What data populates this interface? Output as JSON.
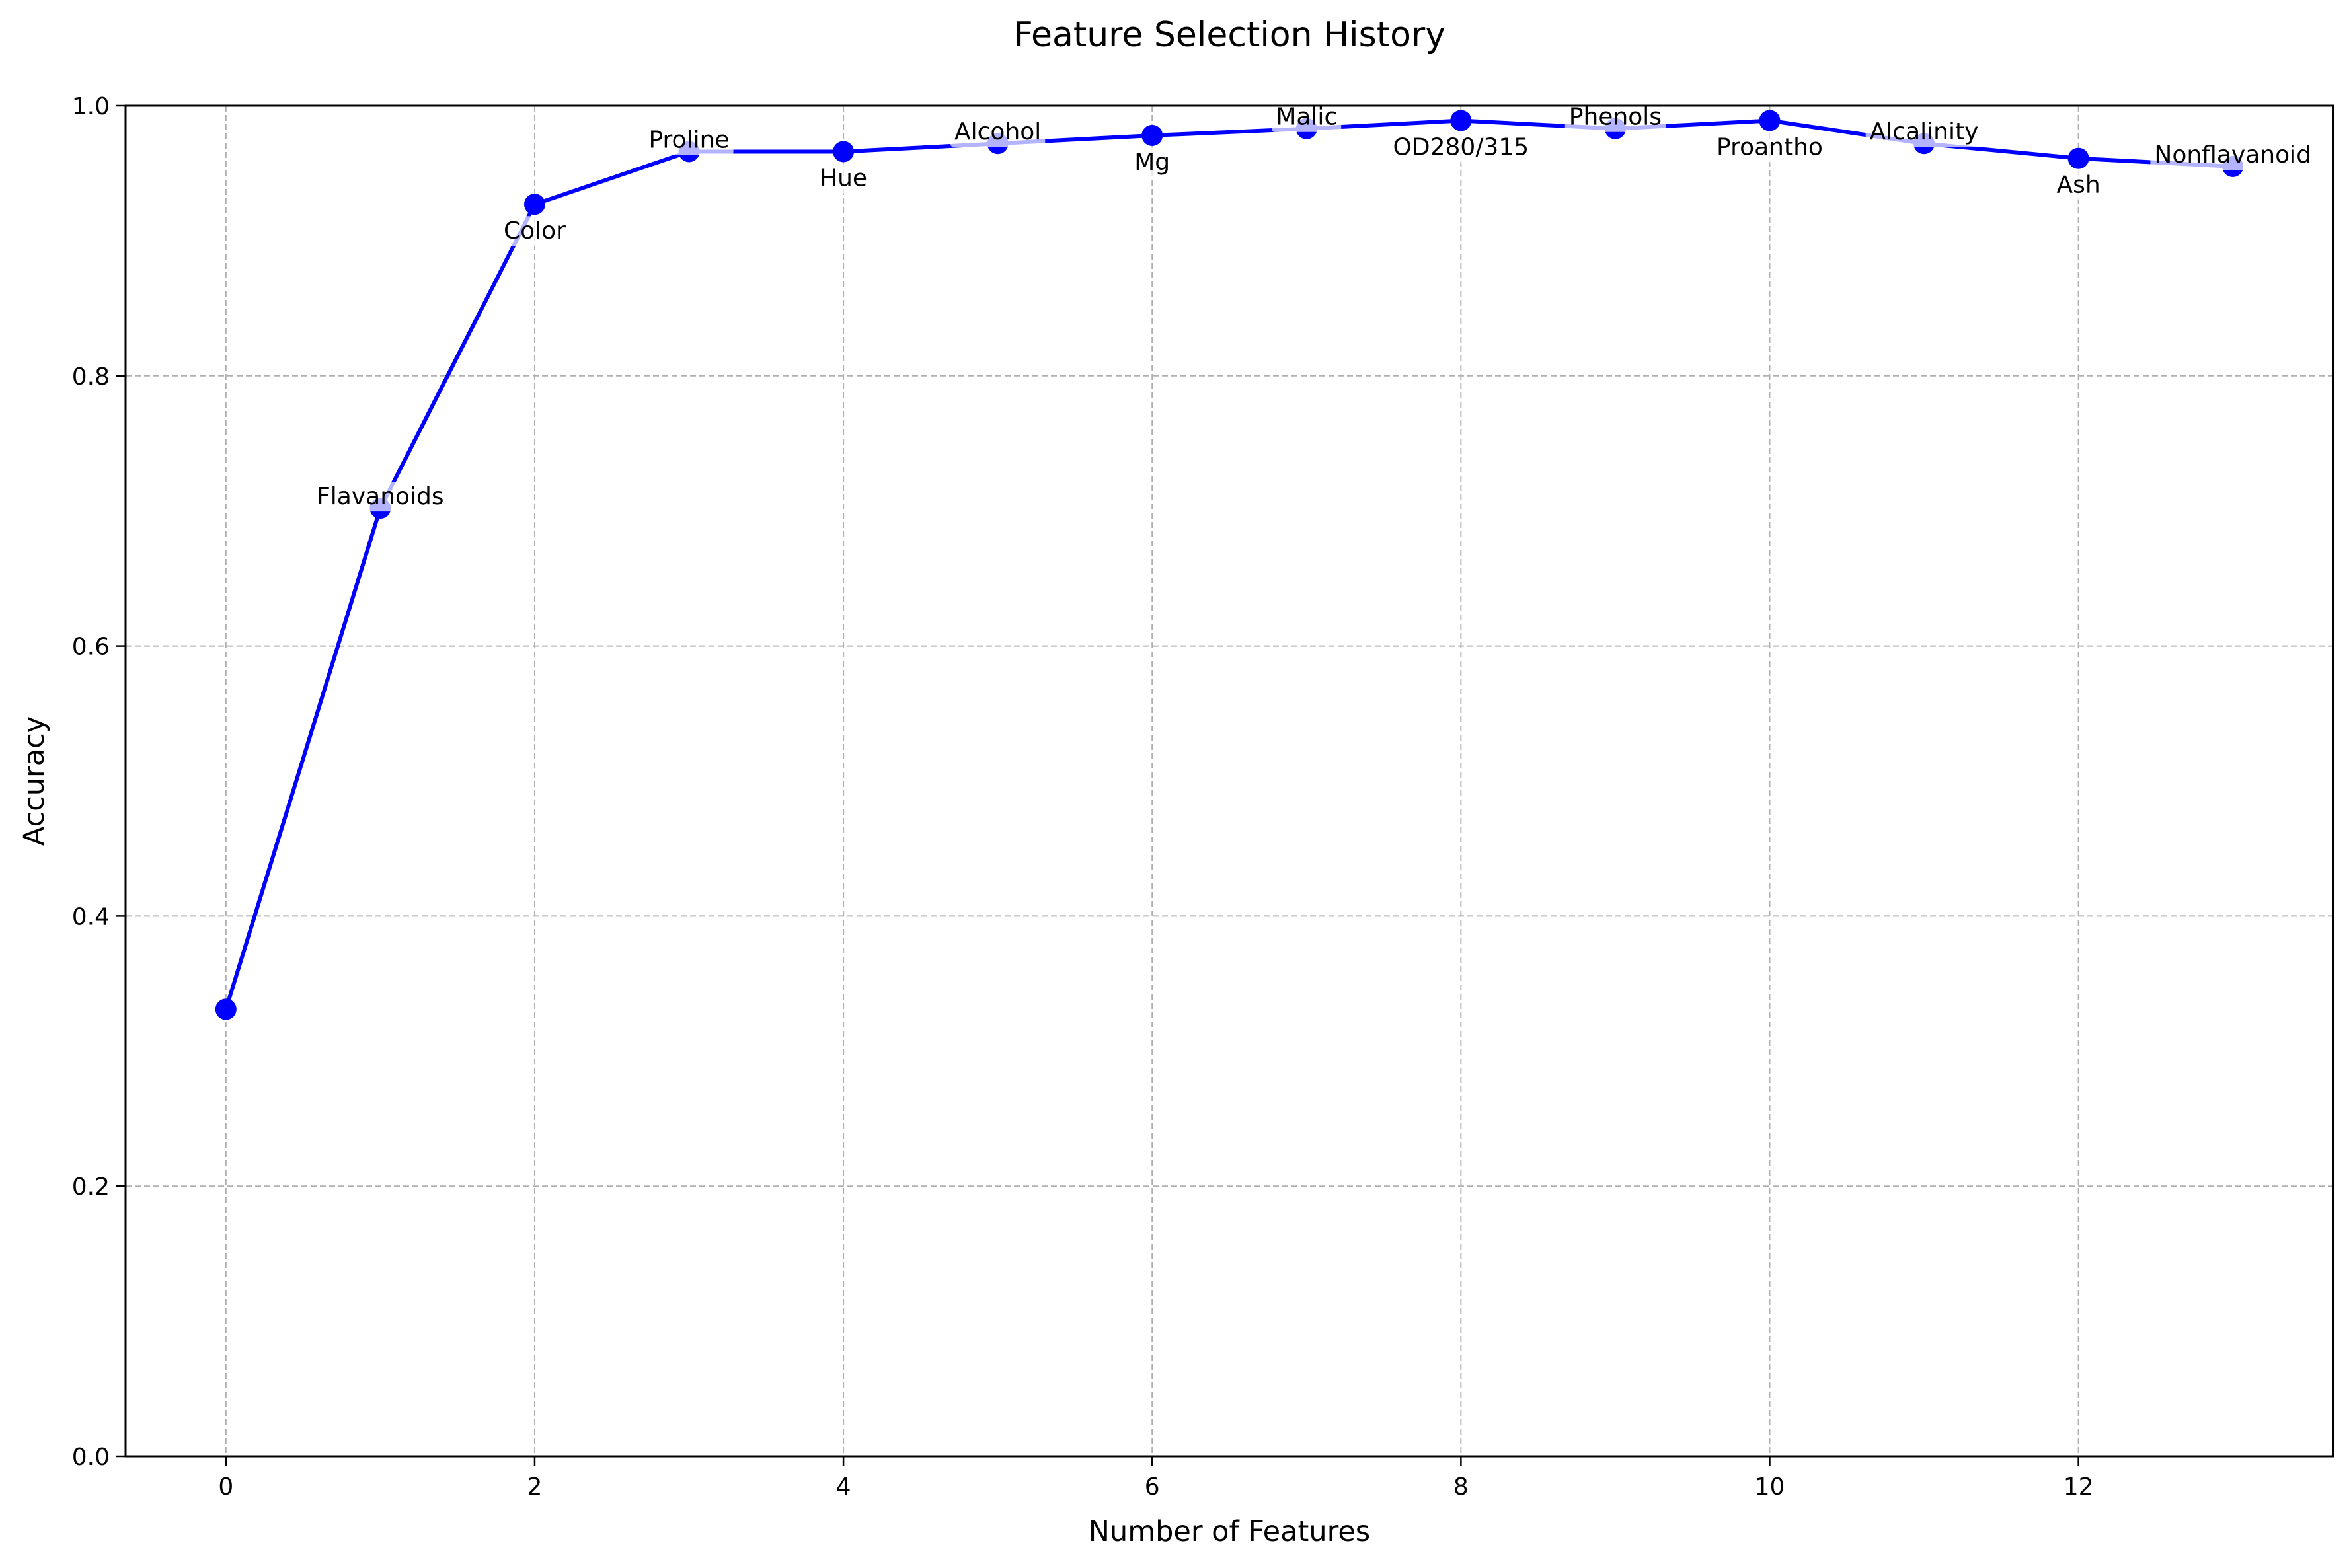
{
  "chart_data": {
    "type": "line",
    "title": "Feature Selection History",
    "xlabel": "Number of Features",
    "ylabel": "Accuracy",
    "xlim": [
      -0.65,
      13.65
    ],
    "ylim": [
      0.0,
      1.0
    ],
    "grid": true,
    "x": [
      0,
      1,
      2,
      3,
      4,
      5,
      6,
      7,
      8,
      9,
      10,
      11,
      12,
      13
    ],
    "series": [
      {
        "values": [
          0.331,
          0.702,
          0.927,
          0.966,
          0.966,
          0.972,
          0.978,
          0.983,
          0.989,
          0.983,
          0.989,
          0.972,
          0.961,
          0.955
        ]
      }
    ],
    "annotations": [
      {
        "x": 1,
        "text": "Flavanoids",
        "pos": "above"
      },
      {
        "x": 2,
        "text": "Color",
        "pos": "below"
      },
      {
        "x": 3,
        "text": "Proline",
        "pos": "above"
      },
      {
        "x": 4,
        "text": "Hue",
        "pos": "below"
      },
      {
        "x": 5,
        "text": "Alcohol",
        "pos": "above"
      },
      {
        "x": 6,
        "text": "Mg",
        "pos": "below"
      },
      {
        "x": 7,
        "text": "Malic",
        "pos": "above"
      },
      {
        "x": 8,
        "text": "OD280/315",
        "pos": "below"
      },
      {
        "x": 9,
        "text": "Phenols",
        "pos": "above"
      },
      {
        "x": 10,
        "text": "Proantho",
        "pos": "below"
      },
      {
        "x": 11,
        "text": "Alcalinity",
        "pos": "above"
      },
      {
        "x": 12,
        "text": "Ash",
        "pos": "below"
      },
      {
        "x": 13,
        "text": "Nonflavanoid",
        "pos": "above"
      }
    ],
    "xticks": [
      0,
      2,
      4,
      6,
      8,
      10,
      12
    ],
    "yticks": [
      0.0,
      0.2,
      0.4,
      0.6,
      0.8,
      1.0
    ],
    "colors": {
      "line": "#0000ff",
      "marker": "#0000ff",
      "annotation_box": "#ffffff",
      "grid": "#b0b0b0"
    }
  }
}
